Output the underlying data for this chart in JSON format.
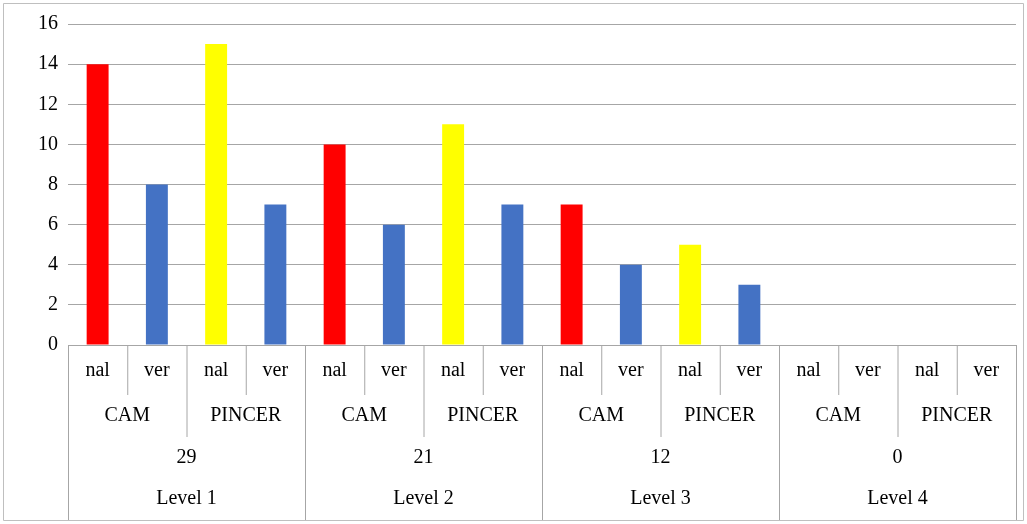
{
  "chart_data": {
    "type": "bar",
    "categories": [
      "nal",
      "ver",
      "nal",
      "ver",
      "nal",
      "ver",
      "nal",
      "ver",
      "nal",
      "ver",
      "nal",
      "ver",
      "nal",
      "ver",
      "nal",
      "ver"
    ],
    "values": [
      14,
      8,
      15,
      7,
      10,
      6,
      11,
      7,
      7,
      4,
      5,
      3,
      0,
      0,
      0,
      0
    ],
    "colors": [
      "#ff0000",
      "#4472c4",
      "#ffff00",
      "#4472c4",
      "#ff0000",
      "#4472c4",
      "#ffff00",
      "#4472c4",
      "#ff0000",
      "#4472c4",
      "#ffff00",
      "#4472c4",
      "#ff0000",
      "#4472c4",
      "#ffff00",
      "#4472c4"
    ],
    "ylim": [
      0,
      16
    ],
    "yticks": [
      0,
      2,
      4,
      6,
      8,
      10,
      12,
      14,
      16
    ],
    "grid": "y",
    "legend": false,
    "annotations": [
      "CAM",
      "PINCER",
      "CAM",
      "PINCER",
      "CAM",
      "PINCER",
      "CAM",
      "PINCER",
      "29",
      "21",
      "12",
      "0",
      "Level 1",
      "Level 2",
      "Level 3",
      "Level 4"
    ]
  }
}
